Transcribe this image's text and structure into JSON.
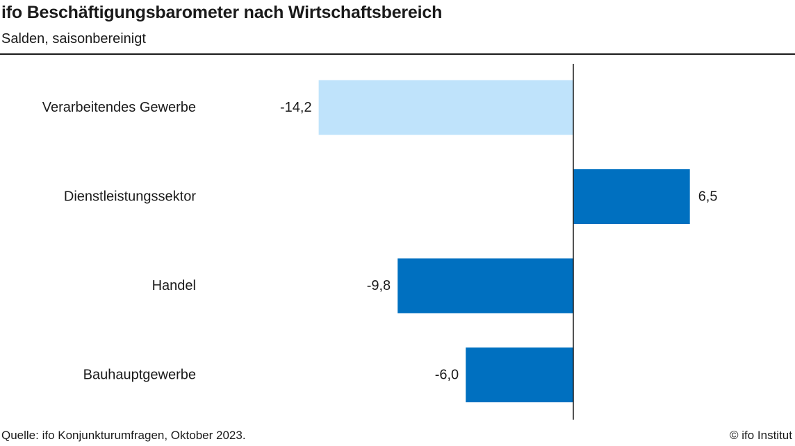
{
  "header": {
    "title": "ifo Beschäftigungsbarometer nach Wirtschaftsbereich",
    "subtitle": "Salden, saisonbereinigt"
  },
  "chart_data": {
    "type": "bar",
    "orientation": "horizontal",
    "title": "ifo Beschäftigungsbarometer nach Wirtschaftsbereich",
    "subtitle": "Salden, saisonbereinigt",
    "categories": [
      "Verarbeitendes Gewerbe",
      "Dienstleistungssektor",
      "Handel",
      "Bauhauptgewerbe"
    ],
    "values": [
      -14.2,
      6.5,
      -9.8,
      -6.0
    ],
    "value_labels": [
      "-14,2",
      "6,5",
      "-9,8",
      "-6,0"
    ],
    "bar_colors": [
      "#bfe3fb",
      "#0070c0",
      "#0070c0",
      "#0070c0"
    ],
    "zero_line_color": "#1a1a1a",
    "xlabel": "",
    "ylabel": "",
    "grid": false,
    "legend": "none"
  },
  "footer": {
    "source": "Quelle: ifo Konjunkturumfragen, Oktober 2023.",
    "copyright": "© ifo Institut"
  }
}
